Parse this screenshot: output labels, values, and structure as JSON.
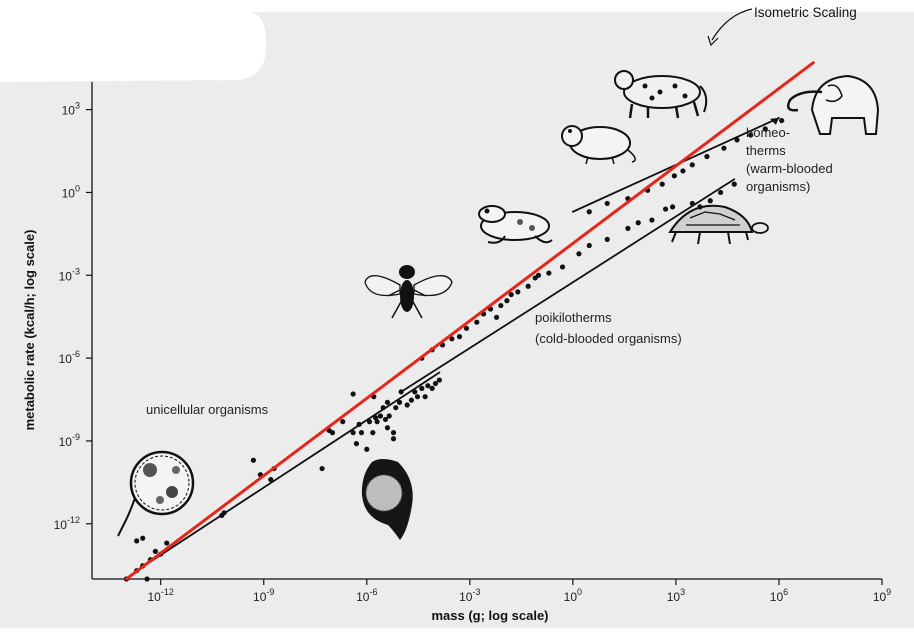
{
  "chart_data": {
    "type": "scatter",
    "title": "",
    "xlabel": "mass (g; log scale)",
    "ylabel": "metabolic rate (kcal/h; log scale)",
    "x_scale": "log",
    "y_scale": "log",
    "xlim": [
      1e-14,
      1000000000.0
    ],
    "ylim": [
      1e-14,
      10000.0
    ],
    "x_ticks": [
      1e-12,
      1e-09,
      1e-06,
      0.001,
      1,
      1000.0,
      1000000.0,
      1000000000.0
    ],
    "y_ticks": [
      1e-12,
      1e-09,
      1e-06,
      0.001,
      1,
      1000.0
    ],
    "x_tick_labels": [
      {
        "base": "10",
        "exp": "-12"
      },
      {
        "base": "10",
        "exp": "-9"
      },
      {
        "base": "10",
        "exp": "-6"
      },
      {
        "base": "10",
        "exp": "-3"
      },
      {
        "base": "10",
        "exp": "0"
      },
      {
        "base": "10",
        "exp": "3"
      },
      {
        "base": "10",
        "exp": "6"
      },
      {
        "base": "10",
        "exp": "9"
      }
    ],
    "y_tick_labels": [
      {
        "base": "10",
        "exp": "-12"
      },
      {
        "base": "10",
        "exp": "-9"
      },
      {
        "base": "10",
        "exp": "-6"
      },
      {
        "base": "10",
        "exp": "-3"
      },
      {
        "base": "10",
        "exp": "0"
      },
      {
        "base": "10",
        "exp": "3"
      }
    ],
    "grid": false,
    "series": [
      {
        "name": "",
        "style": "points",
        "color": "#111111",
        "points": [
          [
            1e-13,
            1e-14
          ],
          [
            2e-13,
            2e-14
          ],
          [
            2e-13,
            2.4e-13
          ],
          [
            3e-13,
            3e-14
          ],
          [
            3e-13,
            3e-14
          ],
          [
            3e-13,
            3e-13
          ],
          [
            4e-13,
            1e-14
          ],
          [
            5e-13,
            5e-14
          ],
          [
            7e-13,
            1e-13
          ],
          [
            1e-12,
            8e-14
          ],
          [
            1.5e-12,
            2e-13
          ],
          [
            6e-11,
            2e-12
          ],
          [
            7e-11,
            2.5e-12
          ],
          [
            5e-10,
            2e-10
          ],
          [
            8e-10,
            6e-11
          ],
          [
            1.6e-09,
            4e-11
          ],
          [
            2e-09,
            1e-10
          ],
          [
            5e-08,
            1e-10
          ],
          [
            8e-08,
            2.4e-09
          ],
          [
            1e-07,
            2e-09
          ],
          [
            2e-07,
            5e-09
          ],
          [
            4e-07,
            2e-09
          ],
          [
            4e-07,
            5e-08
          ],
          [
            5e-07,
            8e-10
          ],
          [
            6e-07,
            4e-09
          ],
          [
            7e-07,
            2e-09
          ],
          [
            1e-06,
            5e-10
          ],
          [
            1.2e-06,
            5e-09
          ],
          [
            1.5e-06,
            2e-09
          ],
          [
            1.6e-06,
            4e-08
          ],
          [
            1.8e-06,
            7e-09
          ],
          [
            2e-06,
            5e-09
          ],
          [
            2.5e-06,
            8e-09
          ],
          [
            3e-06,
            1.6e-08
          ],
          [
            3.5e-06,
            6e-09
          ],
          [
            4e-06,
            3e-09
          ],
          [
            4e-06,
            2.5e-08
          ],
          [
            4.5e-06,
            8e-09
          ],
          [
            6e-06,
            1.2e-09
          ],
          [
            6e-06,
            2e-09
          ],
          [
            7e-06,
            1.6e-08
          ],
          [
            9e-06,
            2.5e-08
          ],
          [
            1e-05,
            6e-08
          ],
          [
            1.5e-05,
            2e-08
          ],
          [
            2e-05,
            3e-08
          ],
          [
            2.5e-05,
            6e-08
          ],
          [
            3e-05,
            4e-08
          ],
          [
            4e-05,
            8e-08
          ],
          [
            5e-05,
            4e-08
          ],
          [
            6e-05,
            1e-07
          ],
          [
            8e-05,
            8e-08
          ],
          [
            0.0001,
            1.2e-07
          ],
          [
            0.00013,
            1.6e-07
          ],
          [
            4e-05,
            1e-06
          ],
          [
            8e-05,
            2e-06
          ],
          [
            0.00016,
            3e-06
          ],
          [
            0.0003,
            5e-06
          ],
          [
            0.0005,
            6e-06
          ],
          [
            0.0008,
            1.2e-05
          ],
          [
            0.0016,
            2e-05
          ],
          [
            0.0025,
            4e-05
          ],
          [
            0.004,
            6e-05
          ],
          [
            0.006,
            3e-05
          ],
          [
            0.008,
            8e-05
          ],
          [
            0.012,
            0.00012
          ],
          [
            0.016,
            0.0002
          ],
          [
            0.025,
            0.00025
          ],
          [
            0.05,
            0.0004
          ],
          [
            0.08,
            0.0008
          ],
          [
            0.1,
            0.001
          ],
          [
            0.2,
            0.0012
          ],
          [
            0.5,
            0.002
          ],
          [
            1.5,
            0.006
          ],
          [
            3,
            0.012
          ],
          [
            10,
            0.02
          ],
          [
            40,
            0.05
          ],
          [
            80,
            0.08
          ],
          [
            200,
            0.1
          ],
          [
            500,
            0.25
          ],
          [
            800,
            0.3
          ],
          [
            3000,
            0.4
          ],
          [
            5000,
            0.3
          ],
          [
            10000,
            0.5
          ],
          [
            20000,
            1
          ],
          [
            50000,
            2
          ],
          [
            3,
            0.2
          ],
          [
            10,
            0.4
          ],
          [
            40,
            0.6
          ],
          [
            150,
            1.2
          ],
          [
            400,
            2
          ],
          [
            900,
            4
          ],
          [
            1600,
            6
          ],
          [
            3000,
            10
          ],
          [
            8000,
            20
          ],
          [
            25000,
            40
          ],
          [
            60000,
            80
          ],
          [
            150000,
            120
          ],
          [
            400000,
            200
          ],
          [
            1200000,
            400
          ]
        ]
      },
      {
        "name": "",
        "style": "line",
        "color": "#111111",
        "points": [
          [
            2e-13,
            2e-14
          ],
          [
            0.00013,
            3e-07
          ]
        ]
      },
      {
        "name": "",
        "style": "line",
        "color": "#111111",
        "points": [
          [
            1e-05,
            6e-08
          ],
          [
            50000,
            3
          ]
        ]
      },
      {
        "name": "",
        "style": "line",
        "color": "#111111",
        "points": [
          [
            1,
            0.2
          ],
          [
            1000000.0,
            500
          ]
        ]
      },
      {
        "name": "Isometric Scaling",
        "style": "line",
        "color": "#e8251b",
        "points": [
          [
            1e-13,
            1e-14
          ],
          [
            10000000.0,
            50000.0
          ]
        ]
      }
    ],
    "annotations": [
      {
        "id": "unicellular",
        "text": "unicellular organisms"
      },
      {
        "id": "poiki",
        "lines": [
          "poikilotherms",
          "(cold-blooded organisms)"
        ]
      },
      {
        "id": "homeo",
        "lines": [
          "homeo-",
          "therms",
          "(warm-blooded",
          "organisms)"
        ]
      },
      {
        "id": "iso",
        "text": "Isometric Scaling"
      }
    ],
    "illustrations": [
      "amoeba",
      "paramecium",
      "fly",
      "frog",
      "mouse",
      "tortoise",
      "leopard",
      "elephant"
    ]
  }
}
